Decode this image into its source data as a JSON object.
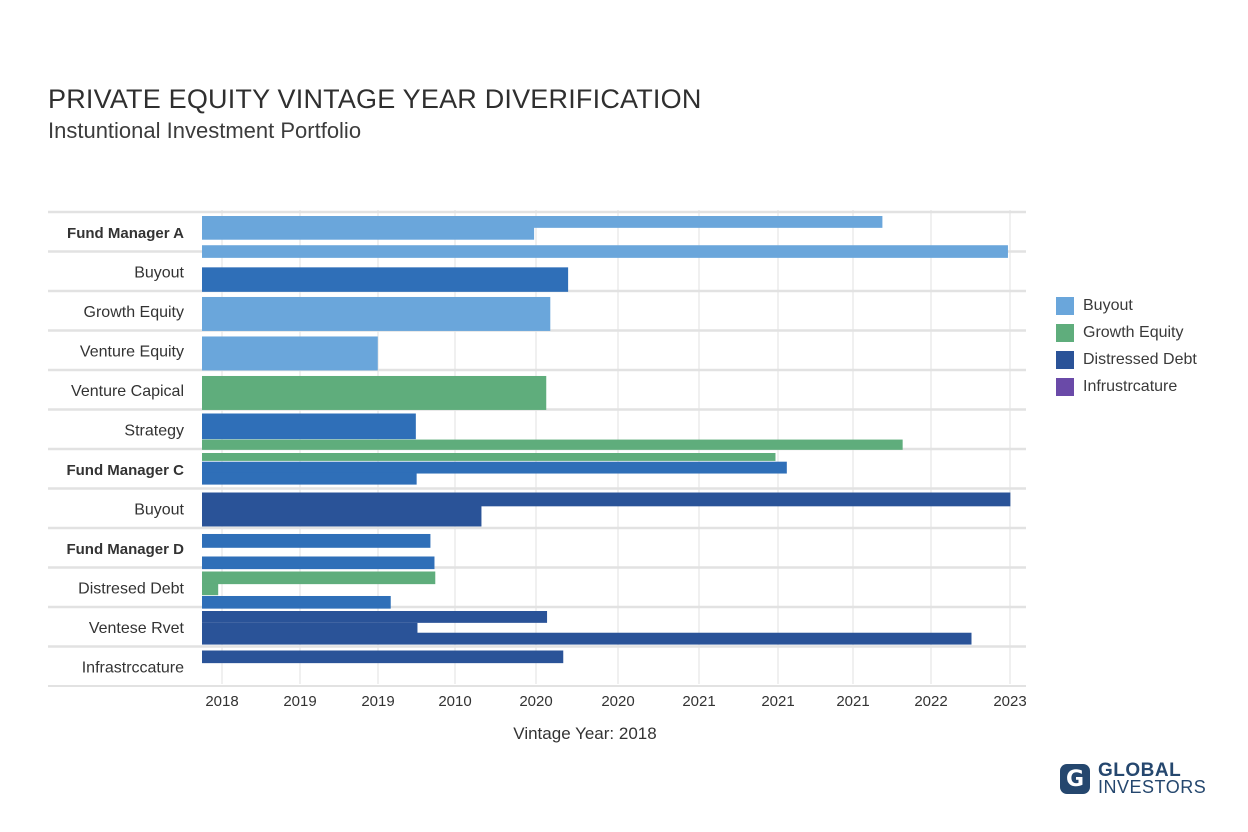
{
  "title": "PRIVATE EQUITY VINTAGE YEAR DIVERIFICATION",
  "subtitle": "Instuntional Investment Portfolio",
  "chart_data": {
    "type": "bar",
    "orientation": "horizontal",
    "title": "PRIVATE EQUITY VINTAGE YEAR DIVERIFICATION",
    "subtitle": "Instuntional Investment Portfolio",
    "xlabel": "Vintage Year: 2018",
    "ylabel": "",
    "grid": true,
    "legend_position": "right",
    "x_tick_labels": [
      "2018",
      "2019",
      "2019",
      "2010",
      "2020",
      "2020",
      "2021",
      "2021",
      "2021",
      "2022",
      "2023"
    ],
    "x_range_ticks": [
      0,
      10
    ],
    "categories": [
      {
        "label": "Fund Manager A",
        "bold": true
      },
      {
        "label": "Buyout",
        "bold": false
      },
      {
        "label": "Growth Equity",
        "bold": false
      },
      {
        "label": "Venture Equity",
        "bold": false
      },
      {
        "label": "Venture Capical",
        "bold": false
      },
      {
        "label": "Strategy",
        "bold": false
      },
      {
        "label": "Fund Manager C",
        "bold": true
      },
      {
        "label": "Buyout",
        "bold": false
      },
      {
        "label": "Fund Manager D",
        "bold": true
      },
      {
        "label": "Distresed Debt",
        "bold": false
      },
      {
        "label": "Ventese Rvet",
        "bold": false
      },
      {
        "label": "Infrastrccature",
        "bold": false
      }
    ],
    "series": [
      {
        "name": "Buyout",
        "color": "#6aa6db"
      },
      {
        "name": "Growth Equity",
        "color": "#5fad7c"
      },
      {
        "name": "Distressed Debt",
        "color": "#2a5398"
      },
      {
        "name": "Infrustrcature",
        "color": "#6a4aa8"
      }
    ],
    "bars": [
      {
        "row": 0,
        "offset": 0.0,
        "height": 0.3,
        "series": "Buyout",
        "color": "#6aa6db",
        "value": 8.4
      },
      {
        "row": 0,
        "offset": 0.28,
        "height": 0.32,
        "series": "Buyout",
        "color": "#6aa6db",
        "value": 4.1
      },
      {
        "row": 0,
        "offset": 0.74,
        "height": 0.32,
        "series": "Buyout",
        "color": "#6aa6db",
        "value": 9.95
      },
      {
        "row": 1,
        "offset": 0.3,
        "height": 0.62,
        "series": "Distressed Debt",
        "color": "#2f6fb8",
        "value": 4.52
      },
      {
        "row": 2,
        "offset": 0.05,
        "height": 0.86,
        "series": "Buyout",
        "color": "#6aa6db",
        "value": 4.3
      },
      {
        "row": 3,
        "offset": 0.05,
        "height": 0.86,
        "series": "Buyout",
        "color": "#6aa6db",
        "value": 2.17
      },
      {
        "row": 4,
        "offset": 0.05,
        "height": 0.86,
        "series": "Growth Equity",
        "color": "#5fad7c",
        "value": 4.25
      },
      {
        "row": 5,
        "offset": 0.0,
        "height": 0.65,
        "series": "Distressed Debt",
        "color": "#2f6fb8",
        "value": 2.64
      },
      {
        "row": 5,
        "offset": 0.66,
        "height": 0.26,
        "series": "Growth Equity",
        "color": "#5fad7c",
        "value": 8.65
      },
      {
        "row": 6,
        "offset": 0.0,
        "height": 0.2,
        "series": "Growth Equity",
        "color": "#5fad7c",
        "value": 7.08
      },
      {
        "row": 6,
        "offset": 0.22,
        "height": 0.3,
        "series": "Distressed Debt",
        "color": "#2f6fb8",
        "value": 7.22
      },
      {
        "row": 6,
        "offset": 0.5,
        "height": 0.3,
        "series": "Distressed Debt",
        "color": "#2f6fb8",
        "value": 2.65
      },
      {
        "row": 7,
        "offset": 0.0,
        "height": 0.35,
        "series": "Distressed Debt",
        "color": "#2a5398",
        "value": 9.98
      },
      {
        "row": 7,
        "offset": 0.3,
        "height": 0.56,
        "series": "Distressed Debt",
        "color": "#2a5398",
        "value": 3.45
      },
      {
        "row": 8,
        "offset": 0.05,
        "height": 0.35,
        "series": "Distressed Debt",
        "color": "#2f6fb8",
        "value": 2.82
      },
      {
        "row": 8,
        "offset": 0.62,
        "height": 0.32,
        "series": "Distressed Debt",
        "color": "#2f6fb8",
        "value": 2.87
      },
      {
        "row": 9,
        "offset": 0.0,
        "height": 0.32,
        "series": "Growth Equity",
        "color": "#5fad7c",
        "value": 2.88
      },
      {
        "row": 9,
        "offset": 0.3,
        "height": 0.3,
        "series": "Growth Equity",
        "color": "#5fad7c",
        "value": 0.2
      },
      {
        "row": 9,
        "offset": 0.62,
        "height": 0.32,
        "series": "Distressed Debt",
        "color": "#2f6fb8",
        "value": 2.33
      },
      {
        "row": 10,
        "offset": 0.0,
        "height": 0.3,
        "series": "Distressed Debt",
        "color": "#2a5398",
        "value": 4.26
      },
      {
        "row": 10,
        "offset": 0.3,
        "height": 0.5,
        "series": "Distressed Debt",
        "color": "#2a5398",
        "value": 2.66
      },
      {
        "row": 10,
        "offset": 0.55,
        "height": 0.3,
        "series": "Distressed Debt",
        "color": "#2a5398",
        "value": 9.5
      },
      {
        "row": 11,
        "offset": 0.0,
        "height": 0.32,
        "series": "Distressed Debt",
        "color": "#2a5398",
        "value": 4.46
      }
    ]
  },
  "legend": [
    {
      "label": "Buyout",
      "color": "#6aa6db"
    },
    {
      "label": "Growth Equity",
      "color": "#5fad7c"
    },
    {
      "label": "Distressed Debt",
      "color": "#2a5398"
    },
    {
      "label": "Infrustrcature",
      "color": "#6a4aa8"
    }
  ],
  "logo": {
    "mark": "G",
    "line1": "GLOBAL",
    "line2": "INVESTORS"
  }
}
